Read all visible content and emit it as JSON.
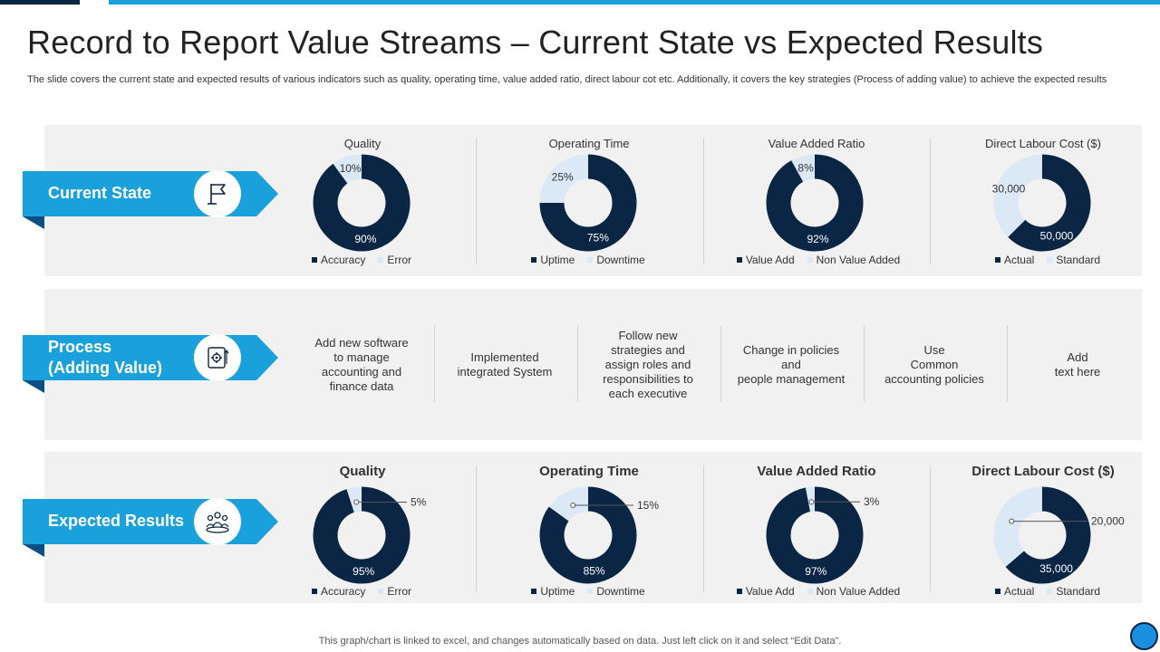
{
  "title": "Record to Report Value Streams – Current State vs Expected Results",
  "subtitle": "The slide covers the current state and expected results of various indicators such as quality, operating time, value added ratio, direct labour cot etc. Additionally, it covers the key strategies (Process of adding value) to achieve the expected results",
  "colors": {
    "dark": "#0b2545",
    "light": "#dbe8f6",
    "accent": "#1aa0db",
    "panel": "#f1f1f1"
  },
  "rows": {
    "current": {
      "label": "Current State",
      "icon": "flag-icon"
    },
    "process": {
      "label_line1": "Process",
      "label_line2": "(Adding Value)",
      "icon": "gear-process-icon"
    },
    "expected": {
      "label": "Expected Results",
      "icon": "team-target-icon"
    }
  },
  "process_steps": [
    "Add new software\nto manage\naccounting and\nfinance data",
    "Implemented\nintegrated System",
    "Follow new\nstrategies and\nassign roles and\nresponsibilities to\neach executive",
    "Change in policies\nand\npeople management",
    "Use\nCommon\naccounting policies",
    "Add\ntext here"
  ],
  "chart_data": [
    {
      "type": "pie",
      "group": "current",
      "title": "Quality",
      "categories": [
        "Accuracy",
        "Error"
      ],
      "values": [
        90,
        10
      ],
      "labels": [
        "90%",
        "10%"
      ],
      "legend": [
        "Accuracy",
        "Error"
      ]
    },
    {
      "type": "pie",
      "group": "current",
      "title": "Operating Time",
      "categories": [
        "Uptime",
        "Downtime"
      ],
      "values": [
        75,
        25
      ],
      "labels": [
        "75%",
        "25%"
      ],
      "legend": [
        "Uptime",
        "Downtime"
      ]
    },
    {
      "type": "pie",
      "group": "current",
      "title": "Value Added Ratio",
      "categories": [
        "Value Add",
        "Non Value Added"
      ],
      "values": [
        92,
        8
      ],
      "labels": [
        "92%",
        "8%"
      ],
      "legend": [
        "Value Add",
        "Non Value Added"
      ]
    },
    {
      "type": "pie",
      "group": "current",
      "title": "Direct Labour Cost  ($)",
      "categories": [
        "Actual",
        "Standard"
      ],
      "values": [
        50000,
        30000
      ],
      "labels": [
        "50,000",
        "30,000"
      ],
      "legend": [
        "Actual",
        "Standard"
      ]
    },
    {
      "type": "pie",
      "group": "expected",
      "title": "Quality",
      "categories": [
        "Accuracy",
        "Error"
      ],
      "values": [
        95,
        5
      ],
      "labels": [
        "95%",
        "5%"
      ],
      "legend": [
        "Accuracy",
        "Error"
      ]
    },
    {
      "type": "pie",
      "group": "expected",
      "title": "Operating Time",
      "categories": [
        "Uptime",
        "Downtime"
      ],
      "values": [
        85,
        15
      ],
      "labels": [
        "85%",
        "15%"
      ],
      "legend": [
        "Uptime",
        "Downtime"
      ]
    },
    {
      "type": "pie",
      "group": "expected",
      "title": "Value Added Ratio",
      "categories": [
        "Value Add",
        "Non Value Added"
      ],
      "values": [
        97,
        3
      ],
      "labels": [
        "97%",
        "3%"
      ],
      "legend": [
        "Value Add",
        "Non Value Added"
      ]
    },
    {
      "type": "pie",
      "group": "expected",
      "title": "Direct Labour Cost ($)",
      "categories": [
        "Actual",
        "Standard"
      ],
      "values": [
        35000,
        20000
      ],
      "labels": [
        "35,000",
        "20,000"
      ],
      "legend": [
        "Actual",
        "Standard"
      ]
    }
  ],
  "footer": "This graph/chart is linked to excel,  and changes automatically based on data. Just left click on it and select “Edit Data”."
}
